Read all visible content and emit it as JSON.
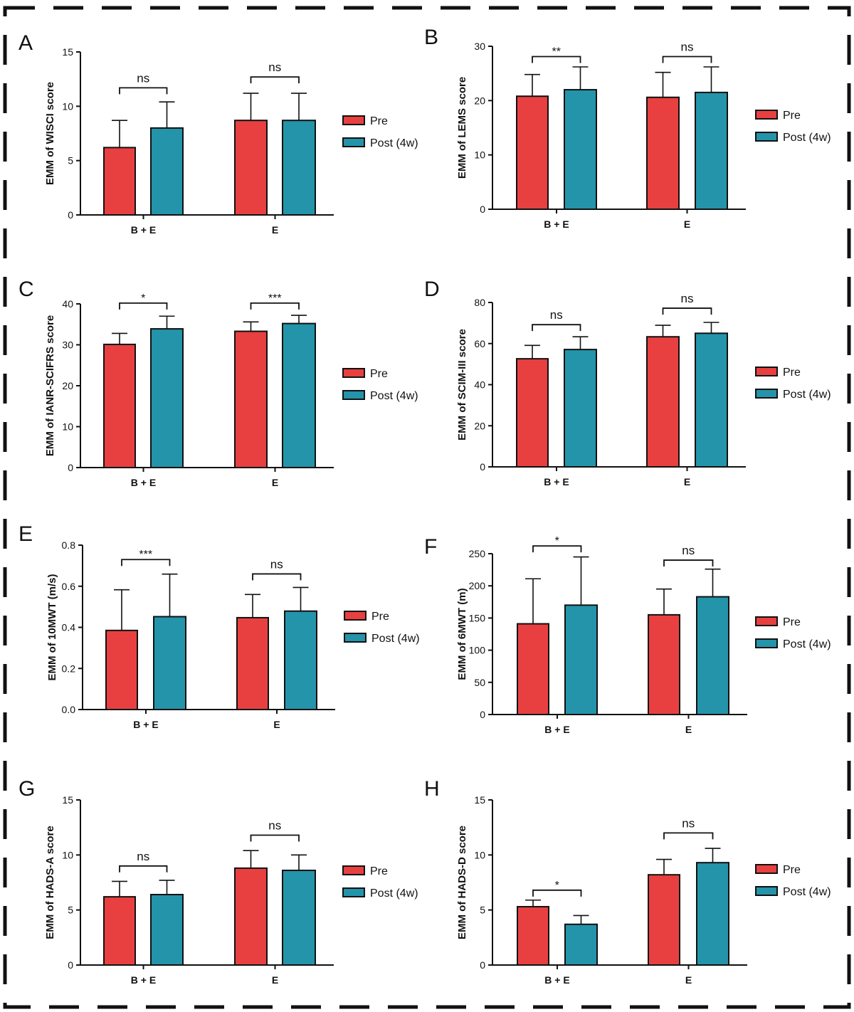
{
  "legend": {
    "pre_label": "Pre",
    "post_label": "Post (4w)"
  },
  "colors": {
    "pre": "#e84040",
    "post": "#2494aa",
    "axis": "#111111"
  },
  "chart_data": [
    {
      "panel": "A",
      "type": "bar",
      "title": "",
      "ylabel": "EMM of WISCI score",
      "xlabel": "",
      "categories": [
        "B + E",
        "E"
      ],
      "ylim": [
        0,
        15
      ],
      "yticks": [
        0,
        5,
        10,
        15
      ],
      "ytick_labels": [
        "0",
        "5",
        "10",
        "15"
      ],
      "series": [
        {
          "name": "Pre",
          "values": [
            6.2,
            8.7
          ],
          "errors": [
            2.5,
            2.5
          ]
        },
        {
          "name": "Post (4w)",
          "values": [
            8.0,
            8.7
          ],
          "errors": [
            2.4,
            2.5
          ]
        }
      ],
      "annotations": [
        {
          "category": "B + E",
          "text": "ns",
          "bracket_y": 11.7
        },
        {
          "category": "E",
          "text": "ns",
          "bracket_y": 12.7
        }
      ],
      "legend_position": "right"
    },
    {
      "panel": "B",
      "type": "bar",
      "title": "",
      "ylabel": "EMM of LEMS score",
      "xlabel": "",
      "categories": [
        "B + E",
        "E"
      ],
      "ylim": [
        0,
        30
      ],
      "yticks": [
        0,
        10,
        20,
        30
      ],
      "ytick_labels": [
        "0",
        "10",
        "20",
        "30"
      ],
      "series": [
        {
          "name": "Pre",
          "values": [
            20.8,
            20.6
          ],
          "errors": [
            4.0,
            4.6
          ]
        },
        {
          "name": "Post (4w)",
          "values": [
            22.0,
            21.5
          ],
          "errors": [
            4.2,
            4.7
          ]
        }
      ],
      "annotations": [
        {
          "category": "B + E",
          "text": "**",
          "bracket_y": 28.1
        },
        {
          "category": "E",
          "text": "ns",
          "bracket_y": 28.1
        }
      ],
      "legend_position": "right"
    },
    {
      "panel": "C",
      "type": "bar",
      "title": "",
      "ylabel": "EMM of IANR-SCIFRS score",
      "xlabel": "",
      "categories": [
        "B + E",
        "E"
      ],
      "ylim": [
        0,
        40
      ],
      "yticks": [
        0,
        10,
        20,
        30,
        40
      ],
      "ytick_labels": [
        "0",
        "10",
        "20",
        "30",
        "40"
      ],
      "series": [
        {
          "name": "Pre",
          "values": [
            30.1,
            33.3
          ],
          "errors": [
            2.7,
            2.3
          ]
        },
        {
          "name": "Post (4w)",
          "values": [
            33.9,
            35.2
          ],
          "errors": [
            3.1,
            2.0
          ]
        }
      ],
      "annotations": [
        {
          "category": "B + E",
          "text": "*",
          "bracket_y": 40.2
        },
        {
          "category": "E",
          "text": "***",
          "bracket_y": 40.2
        }
      ],
      "legend_position": "right"
    },
    {
      "panel": "D",
      "type": "bar",
      "title": "",
      "ylabel": "EMM of SCIM-III score",
      "xlabel": "",
      "categories": [
        "B + E",
        "E"
      ],
      "ylim": [
        0,
        80
      ],
      "yticks": [
        0,
        20,
        40,
        60,
        80
      ],
      "ytick_labels": [
        "0",
        "20",
        "40",
        "60",
        "80"
      ],
      "series": [
        {
          "name": "Pre",
          "values": [
            52.6,
            63.3
          ],
          "errors": [
            6.5,
            5.6
          ]
        },
        {
          "name": "Post (4w)",
          "values": [
            57.1,
            65.0
          ],
          "errors": [
            6.2,
            5.3
          ]
        }
      ],
      "annotations": [
        {
          "category": "B + E",
          "text": "ns",
          "bracket_y": 69.2
        },
        {
          "category": "E",
          "text": "ns",
          "bracket_y": 77.2
        }
      ],
      "legend_position": "right"
    },
    {
      "panel": "E",
      "type": "bar",
      "title": "",
      "ylabel": "EMM of 10MWT (m/s)",
      "xlabel": "",
      "categories": [
        "B + E",
        "E"
      ],
      "ylim": [
        0,
        0.8
      ],
      "yticks": [
        0,
        0.2,
        0.4,
        0.6,
        0.8
      ],
      "ytick_labels": [
        "0.0",
        "0.2",
        "0.4",
        "0.6",
        "0.8"
      ],
      "series": [
        {
          "name": "Pre",
          "values": [
            0.385,
            0.447
          ],
          "errors": [
            0.198,
            0.113
          ]
        },
        {
          "name": "Post (4w)",
          "values": [
            0.452,
            0.479
          ],
          "errors": [
            0.207,
            0.115
          ]
        }
      ],
      "annotations": [
        {
          "category": "B + E",
          "text": "***",
          "bracket_y": 0.73
        },
        {
          "category": "E",
          "text": "ns",
          "bracket_y": 0.66
        }
      ],
      "legend_position": "right"
    },
    {
      "panel": "F",
      "type": "bar",
      "title": "",
      "ylabel": "EMM of 6MWT (m)",
      "xlabel": "",
      "categories": [
        "B + E",
        "E"
      ],
      "ylim": [
        0,
        250
      ],
      "yticks": [
        0,
        50,
        100,
        150,
        200,
        250
      ],
      "ytick_labels": [
        "0",
        "50",
        "100",
        "150",
        "200",
        "250"
      ],
      "series": [
        {
          "name": "Pre",
          "values": [
            141,
            155
          ],
          "errors": [
            70,
            40
          ]
        },
        {
          "name": "Post (4w)",
          "values": [
            170,
            183
          ],
          "errors": [
            75,
            43
          ]
        }
      ],
      "annotations": [
        {
          "category": "B + E",
          "text": "*",
          "bracket_y": 262
        },
        {
          "category": "E",
          "text": "ns",
          "bracket_y": 240
        }
      ],
      "legend_position": "right"
    },
    {
      "panel": "G",
      "type": "bar",
      "title": "",
      "ylabel": "EMM of HADS-A score",
      "xlabel": "",
      "categories": [
        "B + E",
        "E"
      ],
      "ylim": [
        0,
        15
      ],
      "yticks": [
        0,
        5,
        10,
        15
      ],
      "ytick_labels": [
        "0",
        "5",
        "10",
        "15"
      ],
      "series": [
        {
          "name": "Pre",
          "values": [
            6.2,
            8.8
          ],
          "errors": [
            1.4,
            1.6
          ]
        },
        {
          "name": "Post (4w)",
          "values": [
            6.4,
            8.6
          ],
          "errors": [
            1.3,
            1.4
          ]
        }
      ],
      "annotations": [
        {
          "category": "B + E",
          "text": "ns",
          "bracket_y": 9.0
        },
        {
          "category": "E",
          "text": "ns",
          "bracket_y": 11.8
        }
      ],
      "legend_position": "right"
    },
    {
      "panel": "H",
      "type": "bar",
      "title": "",
      "ylabel": "EMM of HADS-D score",
      "xlabel": "",
      "categories": [
        "B + E",
        "E"
      ],
      "ylim": [
        0,
        15
      ],
      "yticks": [
        0,
        5,
        10,
        15
      ],
      "ytick_labels": [
        "0",
        "5",
        "10",
        "15"
      ],
      "series": [
        {
          "name": "Pre",
          "values": [
            5.3,
            8.2
          ],
          "errors": [
            0.6,
            1.4
          ]
        },
        {
          "name": "Post (4w)",
          "values": [
            3.7,
            9.3
          ],
          "errors": [
            0.8,
            1.3
          ]
        }
      ],
      "annotations": [
        {
          "category": "B + E",
          "text": "*",
          "bracket_y": 6.8
        },
        {
          "category": "E",
          "text": "ns",
          "bracket_y": 12.0
        }
      ],
      "legend_position": "right"
    }
  ]
}
